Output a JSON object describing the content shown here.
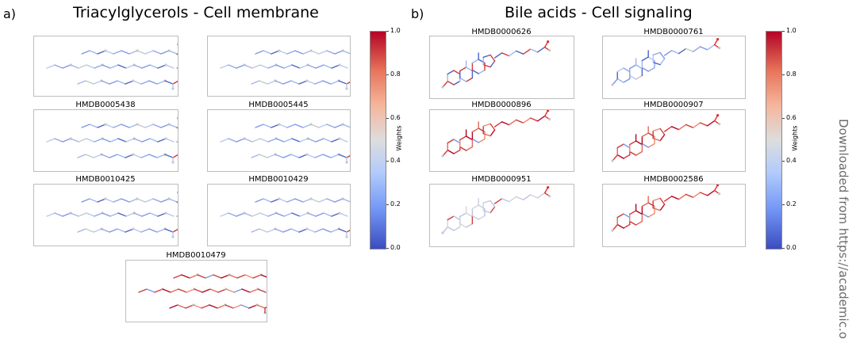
{
  "section_a": {
    "letter": "a)",
    "title": "Triacylglycerols - Cell membrane",
    "panels": [
      {
        "caption": "",
        "kind": "tag",
        "tone": "blue"
      },
      {
        "caption": "",
        "kind": "tag",
        "tone": "blue"
      },
      {
        "caption": "HMDB0005438",
        "kind": "tag",
        "tone": "blue"
      },
      {
        "caption": "HMDB0005445",
        "kind": "tag",
        "tone": "blue"
      },
      {
        "caption": "HMDB0010425",
        "kind": "tag",
        "tone": "blue"
      },
      {
        "caption": "HMDB0010429",
        "kind": "tag",
        "tone": "blue"
      },
      {
        "caption": "HMDB0010479",
        "kind": "tag",
        "tone": "red"
      }
    ],
    "colorbar": {
      "label": "Weights",
      "ticks": [
        "1.0",
        "0.8",
        "0.6",
        "0.4",
        "0.2",
        "0.0"
      ]
    }
  },
  "section_b": {
    "letter": "b)",
    "title": "Bile acids - Cell signaling",
    "panels": [
      {
        "caption": "HMDB0000626",
        "kind": "steroid",
        "tone": "mixed"
      },
      {
        "caption": "HMDB0000761",
        "kind": "steroid",
        "tone": "blue"
      },
      {
        "caption": "HMDB0000896",
        "kind": "steroid",
        "tone": "red"
      },
      {
        "caption": "HMDB0000907",
        "kind": "steroid",
        "tone": "red"
      },
      {
        "caption": "HMDB0000951",
        "kind": "steroid",
        "tone": "grey"
      },
      {
        "caption": "HMDB0002586",
        "kind": "steroid",
        "tone": "red"
      }
    ],
    "colorbar": {
      "label": "Weights",
      "ticks": [
        "1.0",
        "0.8",
        "0.6",
        "0.4",
        "0.2",
        "0.0"
      ]
    }
  },
  "watermark": "Downloaded from https://academic.o",
  "colors": {
    "low": "#3b4cc0",
    "mid": "#dddddd",
    "high": "#b40426",
    "oxygen": "#e03030",
    "bond_grey": "#c8c8c8"
  }
}
